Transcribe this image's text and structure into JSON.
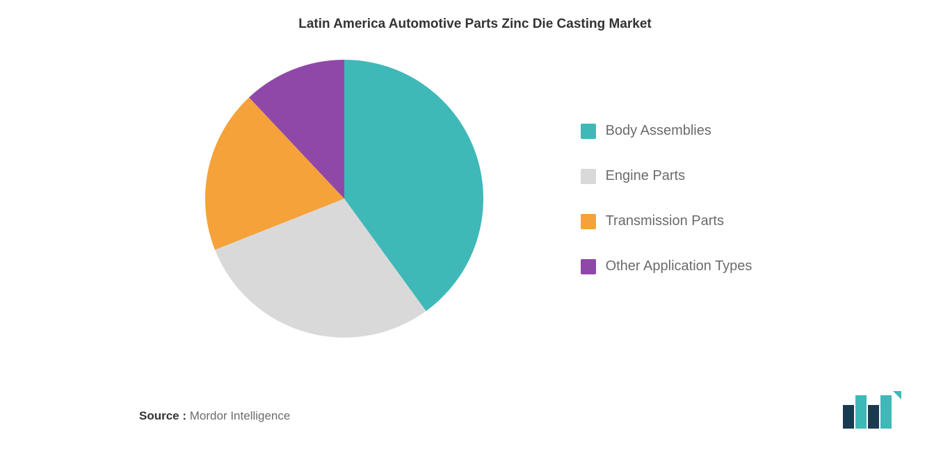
{
  "chart": {
    "type": "pie",
    "title": "Latin America Automotive Parts Zinc Die Casting Market",
    "title_fontsize": 19,
    "title_color": "#333333",
    "background_color": "#ffffff",
    "radius": 200,
    "series": [
      {
        "label": "Body Assemblies",
        "value": 40,
        "color": "#3fb8b8"
      },
      {
        "label": "Engine Parts",
        "value": 29,
        "color": "#d9d9d9"
      },
      {
        "label": "Transmission Parts",
        "value": 19,
        "color": "#f5a23a"
      },
      {
        "label": "Other Application Types",
        "value": 12,
        "color": "#9048a8"
      }
    ]
  },
  "legend": {
    "label_fontsize": 20,
    "label_color": "#6b6b6b",
    "swatch_size": 22,
    "gap": 42
  },
  "source": {
    "prefix": "Source :",
    "text": "Mordor Intelligence",
    "fontsize": 17
  },
  "logo": {
    "bar_colors": [
      "#1a3a52",
      "#3fb8b8"
    ],
    "accent_color": "#3fb8b8"
  }
}
